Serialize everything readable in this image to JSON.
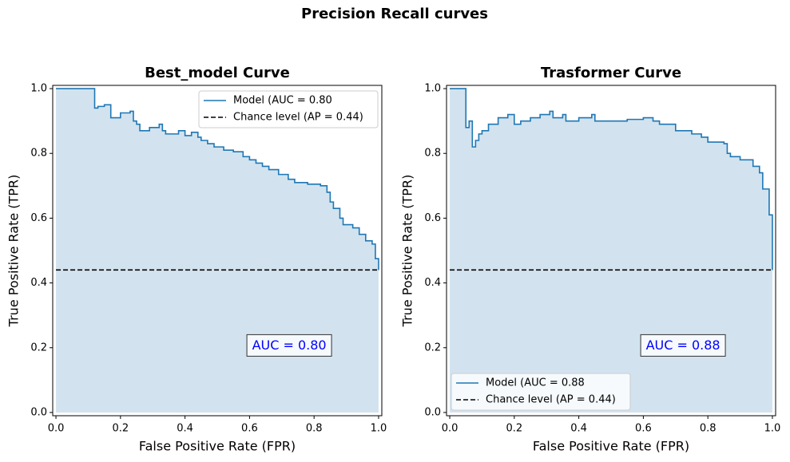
{
  "title": "Precision Recall curves",
  "chart_data": [
    {
      "type": "line",
      "title": "Best_model Curve",
      "x_label": "False Positive Rate (FPR)",
      "y_label": "True Positive Rate (TPR)",
      "xlim": [
        -0.01,
        1.01
      ],
      "ylim": [
        -0.01,
        1.01
      ],
      "xticks": [
        {
          "value": 0,
          "label": "0.0"
        },
        0.2,
        0.4,
        0.6,
        0.8,
        {
          "value": 1,
          "label": "1.0"
        }
      ],
      "yticks": [
        {
          "value": 0,
          "label": "0.0"
        },
        0.2,
        0.4,
        0.6,
        0.8,
        {
          "value": 1,
          "label": "1.0"
        }
      ],
      "legend": "upper right",
      "annotation": "AUC = 0.80",
      "fill_color": "#d2e3ef",
      "series": [
        {
          "name": "Model (AUC = 0.80",
          "color": "#1f77b4",
          "step": true,
          "fill": true,
          "x": [
            0,
            0.12,
            0.13,
            0.15,
            0.17,
            0.2,
            0.23,
            0.24,
            0.25,
            0.26,
            0.29,
            0.32,
            0.33,
            0.34,
            0.38,
            0.4,
            0.42,
            0.44,
            0.45,
            0.47,
            0.49,
            0.52,
            0.55,
            0.58,
            0.6,
            0.62,
            0.64,
            0.66,
            0.69,
            0.72,
            0.74,
            0.78,
            0.82,
            0.84,
            0.85,
            0.86,
            0.88,
            0.89,
            0.92,
            0.94,
            0.96,
            0.98,
            0.99,
            1.0
          ],
          "values": [
            1.0,
            0.94,
            0.945,
            0.95,
            0.91,
            0.925,
            0.93,
            0.9,
            0.89,
            0.87,
            0.88,
            0.89,
            0.87,
            0.86,
            0.87,
            0.855,
            0.865,
            0.85,
            0.84,
            0.83,
            0.82,
            0.81,
            0.805,
            0.79,
            0.78,
            0.77,
            0.76,
            0.75,
            0.735,
            0.72,
            0.71,
            0.705,
            0.7,
            0.68,
            0.65,
            0.63,
            0.6,
            0.58,
            0.57,
            0.55,
            0.53,
            0.52,
            0.475,
            0.44
          ]
        },
        {
          "name": "Chance level (AP = 0.44)",
          "color": "#000000",
          "dashed": true,
          "x": [
            0,
            1
          ],
          "values": [
            0.44,
            0.44
          ]
        }
      ]
    },
    {
      "type": "line",
      "title": "Trasformer Curve",
      "x_label": "False Positive Rate (FPR)",
      "y_label": "True Positive Rate (TPR)",
      "xlim": [
        -0.01,
        1.01
      ],
      "ylim": [
        -0.01,
        1.01
      ],
      "xticks": [
        {
          "value": 0,
          "label": "0.0"
        },
        0.2,
        0.4,
        0.6,
        0.8,
        {
          "value": 1,
          "label": "1.0"
        }
      ],
      "yticks": [
        {
          "value": 0,
          "label": "0.0"
        },
        0.2,
        0.4,
        0.6,
        0.8,
        {
          "value": 1,
          "label": "1.0"
        }
      ],
      "legend": "lower left",
      "annotation": "AUC = 0.88",
      "fill_color": "#d2e3ef",
      "series": [
        {
          "name": "Model (AUC = 0.88",
          "color": "#1f77b4",
          "step": true,
          "fill": true,
          "x": [
            0,
            0.05,
            0.06,
            0.07,
            0.08,
            0.09,
            0.1,
            0.12,
            0.15,
            0.18,
            0.2,
            0.22,
            0.25,
            0.28,
            0.31,
            0.32,
            0.35,
            0.36,
            0.4,
            0.44,
            0.45,
            0.5,
            0.55,
            0.6,
            0.63,
            0.65,
            0.7,
            0.75,
            0.78,
            0.8,
            0.85,
            0.86,
            0.87,
            0.9,
            0.94,
            0.96,
            0.97,
            0.99,
            1.0
          ],
          "values": [
            1.0,
            0.88,
            0.9,
            0.82,
            0.84,
            0.86,
            0.87,
            0.89,
            0.91,
            0.92,
            0.89,
            0.9,
            0.91,
            0.92,
            0.93,
            0.91,
            0.92,
            0.9,
            0.91,
            0.92,
            0.9,
            0.9,
            0.905,
            0.91,
            0.9,
            0.89,
            0.87,
            0.86,
            0.85,
            0.835,
            0.83,
            0.8,
            0.79,
            0.78,
            0.76,
            0.74,
            0.69,
            0.61,
            0.44
          ]
        },
        {
          "name": "Chance level (AP = 0.44)",
          "color": "#000000",
          "dashed": true,
          "x": [
            0,
            1
          ],
          "values": [
            0.44,
            0.44
          ]
        }
      ]
    }
  ]
}
